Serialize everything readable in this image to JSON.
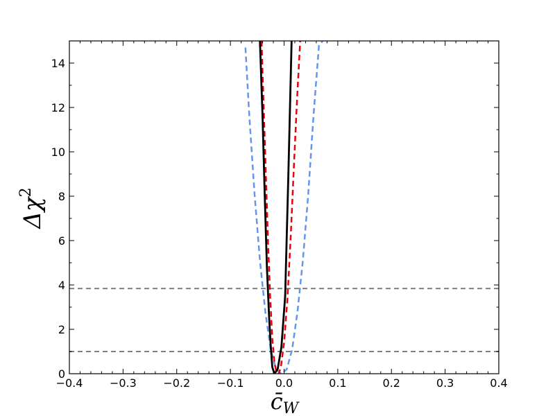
{
  "chart_data": {
    "type": "line",
    "xlabel": "c̄",
    "xlabel_sub": "W",
    "ylabel": "Δχ",
    "ylabel_sup": "2",
    "xlim": [
      -0.4,
      0.4
    ],
    "ylim": [
      0,
      15
    ],
    "x_ticks": [
      -0.4,
      -0.3,
      -0.2,
      -0.1,
      0.0,
      0.1,
      0.2,
      0.3,
      0.4
    ],
    "x_tick_labels": [
      "−0.4",
      "−0.3",
      "−0.2",
      "−0.1",
      "0.0",
      "0.1",
      "0.2",
      "0.3",
      "0.4"
    ],
    "y_ticks": [
      0,
      2,
      4,
      6,
      8,
      10,
      12,
      14
    ],
    "y_tick_labels": [
      "0",
      "2",
      "4",
      "6",
      "8",
      "10",
      "12",
      "14"
    ],
    "grid": false,
    "legend": "none",
    "reference_lines": [
      {
        "y": 1.0,
        "color": "#808080",
        "style": "dashed"
      },
      {
        "y": 3.84,
        "color": "#808080",
        "style": "dashed"
      }
    ],
    "series": [
      {
        "color": "#6495ED",
        "style": "dashed",
        "x": [
          -0.072,
          -0.065,
          -0.055,
          -0.045,
          -0.035,
          -0.025,
          -0.015,
          -0.005,
          0.005,
          0.015,
          0.025,
          0.035,
          0.045,
          0.055,
          0.065,
          0.072
        ],
        "y": [
          14.7,
          11.7,
          8.1,
          5.1,
          2.8,
          1.1,
          0.2,
          0.0,
          0.2,
          1.1,
          2.8,
          5.1,
          8.1,
          11.7,
          14.8,
          15.0
        ]
      },
      {
        "color": "#E8000B",
        "style": "dashed",
        "x": [
          -0.042,
          -0.038,
          -0.034,
          -0.03,
          -0.026,
          -0.022,
          -0.018,
          -0.014,
          -0.01,
          -0.006,
          0.0,
          0.006,
          0.012,
          0.018,
          0.024,
          0.03
        ],
        "y": [
          15.0,
          12.0,
          9.0,
          6.0,
          3.5,
          1.6,
          0.5,
          0.05,
          0.0,
          0.3,
          1.4,
          3.3,
          6.0,
          9.2,
          12.3,
          15.0
        ]
      },
      {
        "color": "#000000",
        "style": "solid",
        "x": [
          -0.045,
          -0.04,
          -0.036,
          -0.032,
          -0.028,
          -0.025,
          -0.022,
          -0.018,
          -0.012,
          -0.005,
          0.002,
          0.008,
          0.014
        ],
        "y": [
          15.0,
          11.5,
          8.0,
          4.8,
          2.6,
          1.3,
          0.3,
          0.0,
          0.2,
          1.2,
          3.5,
          9.0,
          15.0
        ]
      }
    ]
  }
}
